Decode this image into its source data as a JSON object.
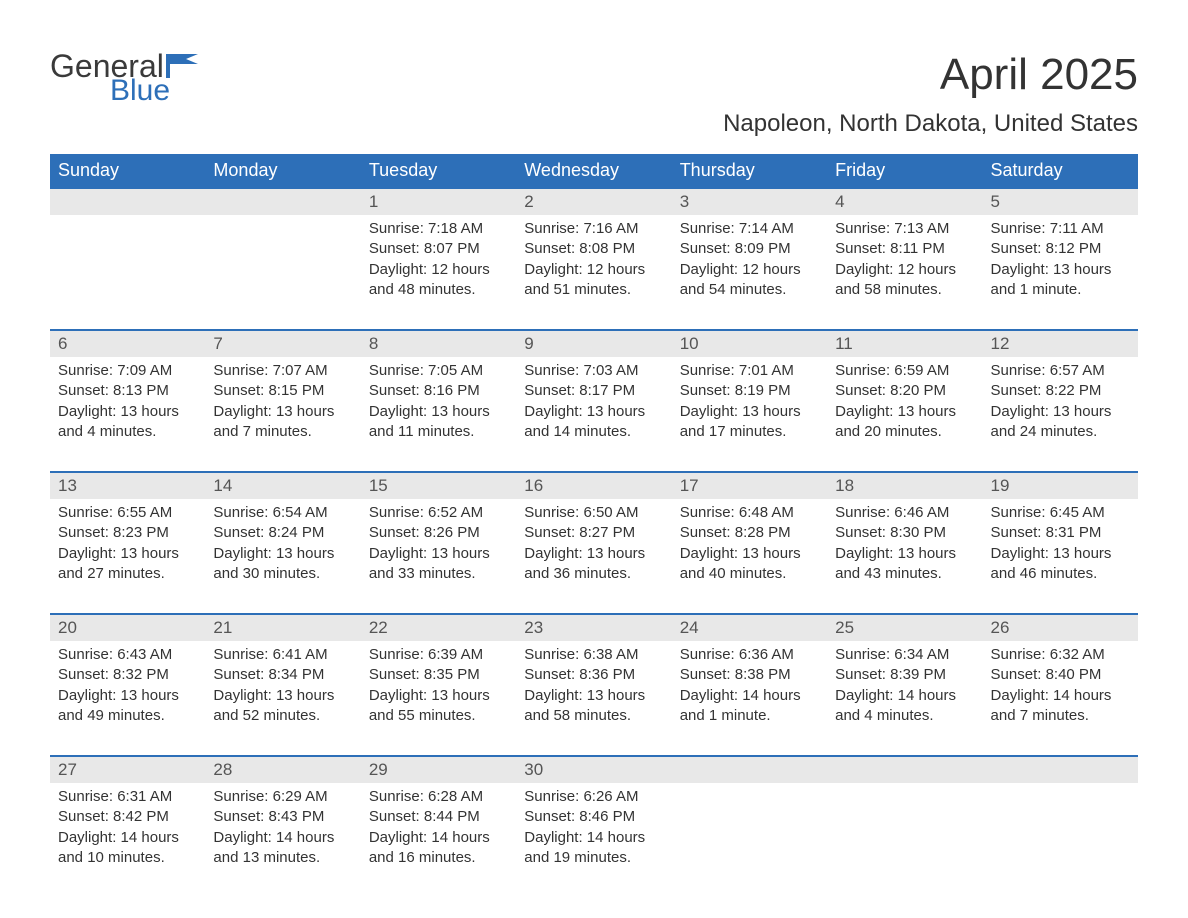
{
  "logo": {
    "general": "General",
    "blue": "Blue",
    "icon_color": "#2d6fb8"
  },
  "title": "April 2025",
  "subtitle": "Napoleon, North Dakota, United States",
  "colors": {
    "header_bg": "#2d6fb8",
    "header_text": "#ffffff",
    "day_number_bg": "#e8e8e8",
    "row_border": "#2d6fb8",
    "body_text": "#333333",
    "background": "#ffffff"
  },
  "weekdays": [
    "Sunday",
    "Monday",
    "Tuesday",
    "Wednesday",
    "Thursday",
    "Friday",
    "Saturday"
  ],
  "weeks": [
    [
      null,
      null,
      {
        "day": "1",
        "sunrise": "Sunrise: 7:18 AM",
        "sunset": "Sunset: 8:07 PM",
        "daylight1": "Daylight: 12 hours",
        "daylight2": "and 48 minutes."
      },
      {
        "day": "2",
        "sunrise": "Sunrise: 7:16 AM",
        "sunset": "Sunset: 8:08 PM",
        "daylight1": "Daylight: 12 hours",
        "daylight2": "and 51 minutes."
      },
      {
        "day": "3",
        "sunrise": "Sunrise: 7:14 AM",
        "sunset": "Sunset: 8:09 PM",
        "daylight1": "Daylight: 12 hours",
        "daylight2": "and 54 minutes."
      },
      {
        "day": "4",
        "sunrise": "Sunrise: 7:13 AM",
        "sunset": "Sunset: 8:11 PM",
        "daylight1": "Daylight: 12 hours",
        "daylight2": "and 58 minutes."
      },
      {
        "day": "5",
        "sunrise": "Sunrise: 7:11 AM",
        "sunset": "Sunset: 8:12 PM",
        "daylight1": "Daylight: 13 hours",
        "daylight2": "and 1 minute."
      }
    ],
    [
      {
        "day": "6",
        "sunrise": "Sunrise: 7:09 AM",
        "sunset": "Sunset: 8:13 PM",
        "daylight1": "Daylight: 13 hours",
        "daylight2": "and 4 minutes."
      },
      {
        "day": "7",
        "sunrise": "Sunrise: 7:07 AM",
        "sunset": "Sunset: 8:15 PM",
        "daylight1": "Daylight: 13 hours",
        "daylight2": "and 7 minutes."
      },
      {
        "day": "8",
        "sunrise": "Sunrise: 7:05 AM",
        "sunset": "Sunset: 8:16 PM",
        "daylight1": "Daylight: 13 hours",
        "daylight2": "and 11 minutes."
      },
      {
        "day": "9",
        "sunrise": "Sunrise: 7:03 AM",
        "sunset": "Sunset: 8:17 PM",
        "daylight1": "Daylight: 13 hours",
        "daylight2": "and 14 minutes."
      },
      {
        "day": "10",
        "sunrise": "Sunrise: 7:01 AM",
        "sunset": "Sunset: 8:19 PM",
        "daylight1": "Daylight: 13 hours",
        "daylight2": "and 17 minutes."
      },
      {
        "day": "11",
        "sunrise": "Sunrise: 6:59 AM",
        "sunset": "Sunset: 8:20 PM",
        "daylight1": "Daylight: 13 hours",
        "daylight2": "and 20 minutes."
      },
      {
        "day": "12",
        "sunrise": "Sunrise: 6:57 AM",
        "sunset": "Sunset: 8:22 PM",
        "daylight1": "Daylight: 13 hours",
        "daylight2": "and 24 minutes."
      }
    ],
    [
      {
        "day": "13",
        "sunrise": "Sunrise: 6:55 AM",
        "sunset": "Sunset: 8:23 PM",
        "daylight1": "Daylight: 13 hours",
        "daylight2": "and 27 minutes."
      },
      {
        "day": "14",
        "sunrise": "Sunrise: 6:54 AM",
        "sunset": "Sunset: 8:24 PM",
        "daylight1": "Daylight: 13 hours",
        "daylight2": "and 30 minutes."
      },
      {
        "day": "15",
        "sunrise": "Sunrise: 6:52 AM",
        "sunset": "Sunset: 8:26 PM",
        "daylight1": "Daylight: 13 hours",
        "daylight2": "and 33 minutes."
      },
      {
        "day": "16",
        "sunrise": "Sunrise: 6:50 AM",
        "sunset": "Sunset: 8:27 PM",
        "daylight1": "Daylight: 13 hours",
        "daylight2": "and 36 minutes."
      },
      {
        "day": "17",
        "sunrise": "Sunrise: 6:48 AM",
        "sunset": "Sunset: 8:28 PM",
        "daylight1": "Daylight: 13 hours",
        "daylight2": "and 40 minutes."
      },
      {
        "day": "18",
        "sunrise": "Sunrise: 6:46 AM",
        "sunset": "Sunset: 8:30 PM",
        "daylight1": "Daylight: 13 hours",
        "daylight2": "and 43 minutes."
      },
      {
        "day": "19",
        "sunrise": "Sunrise: 6:45 AM",
        "sunset": "Sunset: 8:31 PM",
        "daylight1": "Daylight: 13 hours",
        "daylight2": "and 46 minutes."
      }
    ],
    [
      {
        "day": "20",
        "sunrise": "Sunrise: 6:43 AM",
        "sunset": "Sunset: 8:32 PM",
        "daylight1": "Daylight: 13 hours",
        "daylight2": "and 49 minutes."
      },
      {
        "day": "21",
        "sunrise": "Sunrise: 6:41 AM",
        "sunset": "Sunset: 8:34 PM",
        "daylight1": "Daylight: 13 hours",
        "daylight2": "and 52 minutes."
      },
      {
        "day": "22",
        "sunrise": "Sunrise: 6:39 AM",
        "sunset": "Sunset: 8:35 PM",
        "daylight1": "Daylight: 13 hours",
        "daylight2": "and 55 minutes."
      },
      {
        "day": "23",
        "sunrise": "Sunrise: 6:38 AM",
        "sunset": "Sunset: 8:36 PM",
        "daylight1": "Daylight: 13 hours",
        "daylight2": "and 58 minutes."
      },
      {
        "day": "24",
        "sunrise": "Sunrise: 6:36 AM",
        "sunset": "Sunset: 8:38 PM",
        "daylight1": "Daylight: 14 hours",
        "daylight2": "and 1 minute."
      },
      {
        "day": "25",
        "sunrise": "Sunrise: 6:34 AM",
        "sunset": "Sunset: 8:39 PM",
        "daylight1": "Daylight: 14 hours",
        "daylight2": "and 4 minutes."
      },
      {
        "day": "26",
        "sunrise": "Sunrise: 6:32 AM",
        "sunset": "Sunset: 8:40 PM",
        "daylight1": "Daylight: 14 hours",
        "daylight2": "and 7 minutes."
      }
    ],
    [
      {
        "day": "27",
        "sunrise": "Sunrise: 6:31 AM",
        "sunset": "Sunset: 8:42 PM",
        "daylight1": "Daylight: 14 hours",
        "daylight2": "and 10 minutes."
      },
      {
        "day": "28",
        "sunrise": "Sunrise: 6:29 AM",
        "sunset": "Sunset: 8:43 PM",
        "daylight1": "Daylight: 14 hours",
        "daylight2": "and 13 minutes."
      },
      {
        "day": "29",
        "sunrise": "Sunrise: 6:28 AM",
        "sunset": "Sunset: 8:44 PM",
        "daylight1": "Daylight: 14 hours",
        "daylight2": "and 16 minutes."
      },
      {
        "day": "30",
        "sunrise": "Sunrise: 6:26 AM",
        "sunset": "Sunset: 8:46 PM",
        "daylight1": "Daylight: 14 hours",
        "daylight2": "and 19 minutes."
      },
      null,
      null,
      null
    ]
  ]
}
